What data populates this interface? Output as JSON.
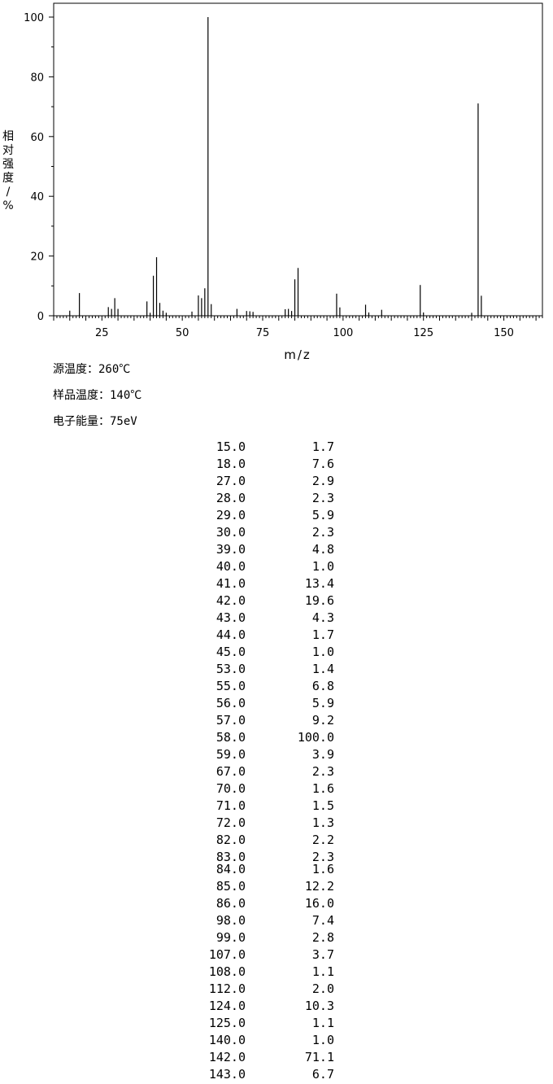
{
  "chart_data": {
    "type": "bar",
    "xlabel": "m/z",
    "ylabel": "相对强度/%",
    "xlim": [
      10,
      162
    ],
    "ylim": [
      0,
      100
    ],
    "x_ticks": [
      25,
      50,
      75,
      100,
      125,
      150
    ],
    "y_ticks": [
      0,
      20,
      40,
      60,
      80,
      100
    ],
    "x": [
      15,
      18,
      27,
      28,
      29,
      30,
      39,
      40,
      41,
      42,
      43,
      44,
      45,
      53,
      55,
      56,
      57,
      58,
      59,
      67,
      70,
      71,
      72,
      82,
      83,
      84,
      85,
      86,
      98,
      99,
      107,
      108,
      112,
      124,
      125,
      140,
      142,
      143
    ],
    "values": [
      1.7,
      7.6,
      2.9,
      2.3,
      5.9,
      2.3,
      4.8,
      1.0,
      13.4,
      19.6,
      4.3,
      1.7,
      1.0,
      1.4,
      6.8,
      5.9,
      9.2,
      100.0,
      3.9,
      2.3,
      1.6,
      1.5,
      1.3,
      2.2,
      2.3,
      1.6,
      12.2,
      16.0,
      7.4,
      2.8,
      3.7,
      1.1,
      2.0,
      10.3,
      1.1,
      1.0,
      71.1,
      6.7
    ]
  },
  "info": {
    "source_temp": "源温度：260℃",
    "sample_temp": "样品温度：140℃",
    "electron_energy": "电子能量：75eV"
  },
  "table": [
    {
      "mz": "15.0",
      "ri": "1.7"
    },
    {
      "mz": "18.0",
      "ri": "7.6"
    },
    {
      "mz": "27.0",
      "ri": "2.9"
    },
    {
      "mz": "28.0",
      "ri": "2.3"
    },
    {
      "mz": "29.0",
      "ri": "5.9"
    },
    {
      "mz": "30.0",
      "ri": "2.3"
    },
    {
      "mz": "39.0",
      "ri": "4.8"
    },
    {
      "mz": "40.0",
      "ri": "1.0"
    },
    {
      "mz": "41.0",
      "ri": "13.4"
    },
    {
      "mz": "42.0",
      "ri": "19.6"
    },
    {
      "mz": "43.0",
      "ri": "4.3"
    },
    {
      "mz": "44.0",
      "ri": "1.7"
    },
    {
      "mz": "45.0",
      "ri": "1.0"
    },
    {
      "mz": "53.0",
      "ri": "1.4"
    },
    {
      "mz": "55.0",
      "ri": "6.8"
    },
    {
      "mz": "56.0",
      "ri": "5.9"
    },
    {
      "mz": "57.0",
      "ri": "9.2"
    },
    {
      "mz": "58.0",
      "ri": "100.0"
    },
    {
      "mz": "59.0",
      "ri": "3.9"
    },
    {
      "mz": "67.0",
      "ri": "2.3"
    },
    {
      "mz": "70.0",
      "ri": "1.6"
    },
    {
      "mz": "71.0",
      "ri": "1.5"
    },
    {
      "mz": "72.0",
      "ri": "1.3"
    },
    {
      "mz": "82.0",
      "ri": "2.2"
    },
    {
      "mz": "83.0",
      "ri": "2.3"
    },
    {
      "mz": "84.0",
      "ri": "1.6"
    },
    {
      "mz": "85.0",
      "ri": "12.2"
    },
    {
      "mz": "86.0",
      "ri": "16.0"
    },
    {
      "mz": "98.0",
      "ri": "7.4"
    },
    {
      "mz": "99.0",
      "ri": "2.8"
    },
    {
      "mz": "107.0",
      "ri": "3.7"
    },
    {
      "mz": "108.0",
      "ri": "1.1"
    },
    {
      "mz": "112.0",
      "ri": "2.0"
    },
    {
      "mz": "124.0",
      "ri": "10.3"
    },
    {
      "mz": "125.0",
      "ri": "1.1"
    },
    {
      "mz": "140.0",
      "ri": "1.0"
    },
    {
      "mz": "142.0",
      "ri": "71.1"
    },
    {
      "mz": "143.0",
      "ri": "6.7"
    }
  ]
}
